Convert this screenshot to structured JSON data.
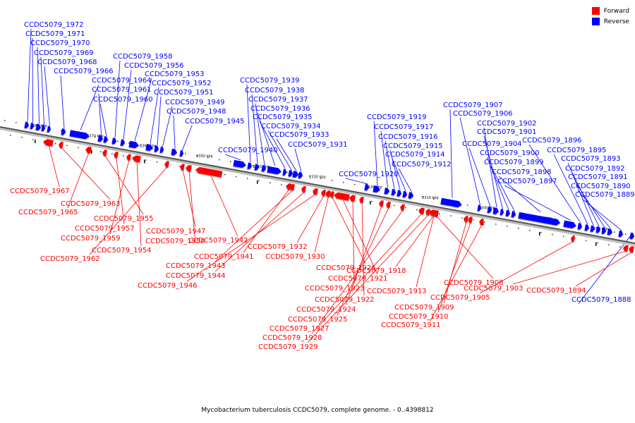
{
  "legend": {
    "forward": {
      "label": "Forward",
      "color": "#ff0000"
    },
    "reverse": {
      "label": "Reverse",
      "color": "#0000ff"
    }
  },
  "caption": "Mycobacterium tuberculosis CCDC5079, complete genome. - 0..4398812",
  "scale_labels": [
    "2380 kbp",
    "2370 kbp",
    "2360 kbp",
    "2350 kbp",
    "2340 kbp",
    "2330 kbp",
    "2320 kbp",
    "2310 kbp",
    "2300 kbp",
    "2290 kbp",
    "2280 kbp"
  ],
  "reverse_genes": [
    "CCDC5079_1972",
    "CCDC5079_1971",
    "CCDC5079_1970",
    "CCDC5079_1969",
    "CCDC5079_1968",
    "CCDC5079_1966",
    "CCDC5079_1964",
    "CCDC5079_1961",
    "CCDC5079_1960",
    "CCDC5079_1958",
    "CCDC5079_1956",
    "CCDC5079_1953",
    "CCDC5079_1952",
    "CCDC5079_1951",
    "CCDC5079_1949",
    "CCDC5079_1948",
    "CCDC5079_1945",
    "CCDC5079_1940",
    "CCDC5079_1939",
    "CCDC5079_1938",
    "CCDC5079_1937",
    "CCDC5079_1936",
    "CCDC5079_1935",
    "CCDC5079_1934",
    "CCDC5079_1933",
    "CCDC5079_1931",
    "CCDC5079_1920",
    "CCDC5079_1919",
    "CCDC5079_1917",
    "CCDC5079_1916",
    "CCDC5079_1915",
    "CCDC5079_1914",
    "CCDC5079_1912",
    "CCDC5079_1907",
    "CCDC5079_1906",
    "CCDC5079_1904",
    "CCDC5079_1902",
    "CCDC5079_1901",
    "CCDC5079_1900",
    "CCDC5079_1899",
    "CCDC5079_1898",
    "CCDC5079_1897",
    "CCDC5079_1896",
    "CCDC5079_1895",
    "CCDC5079_1893",
    "CCDC5079_1892",
    "CCDC5079_1891",
    "CCDC5079_1890",
    "CCDC5079_1889",
    "CCDC5079_1888"
  ],
  "forward_genes": [
    "CCDC5079_1967",
    "CCDC5079_1963",
    "CCDC5079_1965",
    "CCDC5079_1955",
    "CCDC5079_1957",
    "CCDC5079_1959",
    "CCDC5079_1954",
    "CCDC5079_1962",
    "CCDC5079_1947",
    "CCDC5079_1950",
    "CCDC5079_1942",
    "CCDC5079_1941",
    "CCDC5079_1943",
    "CCDC5079_1944",
    "CCDC5079_1946",
    "CCDC5079_1932",
    "CCDC5079_1930",
    "CCDC5079_1926",
    "CCDC5079_1921",
    "CCDC5079_1923",
    "CCDC5079_1922",
    "CCDC5079_1924",
    "CCDC5079_1925",
    "CCDC5079_1927",
    "CCDC5079_1928",
    "CCDC5079_1929",
    "CCDC5079_1918",
    "CCDC5079_1913",
    "CCDC5079_1908",
    "CCDC5079_1909",
    "CCDC5079_1910",
    "CCDC5079_1911",
    "CCDC5079_1905",
    "CCDC5079_1903",
    "CCDC5079_1894"
  ]
}
